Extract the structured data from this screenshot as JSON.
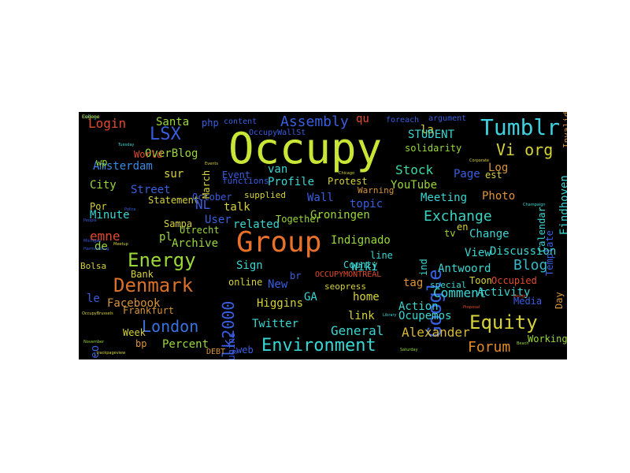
{
  "background": "#000000",
  "words": [
    {
      "t": "Occupy",
      "c": "#c8e635"
    },
    {
      "t": "Group",
      "c": "#e8722c"
    },
    {
      "t": "Tumblr",
      "c": "#3fd0e0"
    },
    {
      "t": "Energy",
      "c": "#9ad83a"
    },
    {
      "t": "Denmark",
      "c": "#d9712a"
    },
    {
      "t": "Environment",
      "c": "#3ad6d2"
    },
    {
      "t": "Equity",
      "c": "#d6d23a"
    },
    {
      "t": "Google",
      "c": "#3a5ee0"
    },
    {
      "t": "Talk2000",
      "c": "#3a5ee0"
    },
    {
      "t": "London",
      "c": "#3a72e0"
    },
    {
      "t": "LSX",
      "c": "#3a5ee0"
    },
    {
      "t": "Assembly",
      "c": "#3a5ee0"
    },
    {
      "t": "Exchange",
      "c": "#3ad2c2"
    },
    {
      "t": "Forum",
      "c": "#e08a2a"
    },
    {
      "t": "Blog",
      "c": "#38b8c8"
    },
    {
      "t": "Comment",
      "c": "#3ad6d2"
    },
    {
      "t": "General",
      "c": "#3ad6d2"
    },
    {
      "t": "Alexander",
      "c": "#d6b83a"
    },
    {
      "t": "Vi org",
      "c": "#d6d23a"
    },
    {
      "t": "Stock",
      "c": "#3ad6a6"
    },
    {
      "t": "Login",
      "c": "#e04a30"
    },
    {
      "t": "Facebook",
      "c": "#d6943a"
    },
    {
      "t": "Activity",
      "c": "#3ad6d2"
    },
    {
      "t": "Change",
      "c": "#3ad6d2"
    },
    {
      "t": "Profile",
      "c": "#3ad6d2"
    },
    {
      "t": "Meeting",
      "c": "#3ad6d2"
    },
    {
      "t": "Photo",
      "c": "#e0943a"
    },
    {
      "t": "Higgins",
      "c": "#d6d23a"
    },
    {
      "t": "Twitter",
      "c": "#3ad6d2"
    },
    {
      "t": "Percent",
      "c": "#9ad83a"
    },
    {
      "t": "OverBlog",
      "c": "#9ad83a"
    },
    {
      "t": "Amsterdam",
      "c": "#3a8ae0"
    },
    {
      "t": "Street",
      "c": "#3a5ee0"
    },
    {
      "t": "Minute",
      "c": "#3ad6d2"
    },
    {
      "t": "Statement",
      "c": "#d6d23a"
    },
    {
      "t": "emne",
      "c": "#e04a30"
    },
    {
      "t": "Archive",
      "c": "#9ad83a"
    },
    {
      "t": "Groningen",
      "c": "#9ad83a"
    },
    {
      "t": "related",
      "c": "#3ad6d2"
    },
    {
      "t": "Eindhoven",
      "c": "#3ad6d2"
    },
    {
      "t": "Wiki",
      "c": "#3ad6d2"
    },
    {
      "t": "New",
      "c": "#3a5ee0"
    },
    {
      "t": "Sign",
      "c": "#3ad6d2"
    },
    {
      "t": "Wall",
      "c": "#3a5ee0"
    },
    {
      "t": "Event",
      "c": "#3a5ee0"
    },
    {
      "t": "Santa",
      "c": "#9ad83a"
    },
    {
      "t": "php",
      "c": "#3a5ee0"
    },
    {
      "t": "content",
      "c": "#3a5ee0"
    },
    {
      "t": "OccupyWallSt",
      "c": "#3a5ee0"
    },
    {
      "t": "qu",
      "c": "#e04a30"
    },
    {
      "t": "argument",
      "c": "#3a5ee0"
    },
    {
      "t": "la",
      "c": "#d6d23a"
    },
    {
      "t": "STUDENT",
      "c": "#3ad6d2"
    },
    {
      "t": "solidarity",
      "c": "#9ad83a"
    },
    {
      "t": "foreach",
      "c": "#3a5ee0"
    },
    {
      "t": "Page",
      "c": "#3a5ee0"
    },
    {
      "t": "Log",
      "c": "#d6943a"
    },
    {
      "t": "est",
      "c": "#d6d23a"
    },
    {
      "t": "YouTube",
      "c": "#9ad83a"
    },
    {
      "t": "Protest",
      "c": "#d6d23a"
    },
    {
      "t": "van",
      "c": "#3ad6d2"
    },
    {
      "t": "Warning",
      "c": "#d6943a"
    },
    {
      "t": "Calendar",
      "c": "#3ad6d2"
    },
    {
      "t": "Template",
      "c": "#3a5ee0"
    },
    {
      "t": "Invalid",
      "c": "#d6943a"
    },
    {
      "t": "Day",
      "c": "#d6943a"
    },
    {
      "t": "topic",
      "c": "#3a5ee0"
    },
    {
      "t": "Together",
      "c": "#9ad83a"
    },
    {
      "t": "talk",
      "c": "#d6d23a"
    },
    {
      "t": "NL",
      "c": "#3a5ee0"
    },
    {
      "t": "User",
      "c": "#3a5ee0"
    },
    {
      "t": "Sampa",
      "c": "#d6d23a"
    },
    {
      "t": "Utrecht",
      "c": "#9ad83a"
    },
    {
      "t": "de",
      "c": "#9ad83a"
    },
    {
      "t": "pl",
      "c": "#9ad83a"
    },
    {
      "t": "Bank",
      "c": "#d6d23a"
    },
    {
      "t": "Bolsa",
      "c": "#d6d23a"
    },
    {
      "t": "le",
      "c": "#3a5ee0"
    },
    {
      "t": "Video",
      "c": "#3a5ee0"
    },
    {
      "t": "Frankfurt",
      "c": "#d6943a"
    },
    {
      "t": "Week",
      "c": "#d6d23a"
    },
    {
      "t": "bp",
      "c": "#e0943a"
    },
    {
      "t": "plugins",
      "c": "#3a5ee0"
    },
    {
      "t": "web",
      "c": "#3a5ee0"
    },
    {
      "t": "DEBT",
      "c": "#d6943a"
    },
    {
      "t": "br",
      "c": "#3a5ee0"
    },
    {
      "t": "GA",
      "c": "#3ad6d2"
    },
    {
      "t": "online",
      "c": "#d6d23a"
    },
    {
      "t": "OCCUPYMONTREAL",
      "c": "#e04a30"
    },
    {
      "t": "seopress",
      "c": "#d6d23a"
    },
    {
      "t": "home",
      "c": "#d6d23a"
    },
    {
      "t": "link",
      "c": "#d6d23a"
    },
    {
      "t": "tag",
      "c": "#e0943a"
    },
    {
      "t": "Action",
      "c": "#3ad6d2"
    },
    {
      "t": "Ocupemos",
      "c": "#3ad6d2"
    },
    {
      "t": "Working",
      "c": "#9ad83a"
    },
    {
      "t": "Media",
      "c": "#3a5ee0"
    },
    {
      "t": "Occupied",
      "c": "#e04a30"
    },
    {
      "t": "Toon",
      "c": "#d6d23a"
    },
    {
      "t": "Antwoord",
      "c": "#3ad6d2"
    },
    {
      "t": "special",
      "c": "#3ad6d2"
    },
    {
      "t": "Discussion",
      "c": "#3ad6d2"
    },
    {
      "t": "View",
      "c": "#3ad6d2"
    },
    {
      "t": "tv",
      "c": "#9ad83a"
    },
    {
      "t": "en",
      "c": "#d6d23a"
    },
    {
      "t": "Indignado",
      "c": "#9ad83a"
    },
    {
      "t": "line",
      "c": "#3ad6d2"
    },
    {
      "t": "County",
      "c": "#3ad6d2"
    },
    {
      "t": "World",
      "c": "#e04a30"
    },
    {
      "t": "sur",
      "c": "#d6d23a"
    },
    {
      "t": "City",
      "c": "#9ad83a"
    },
    {
      "t": "Por",
      "c": "#d6d23a"
    },
    {
      "t": "October",
      "c": "#3a5ee0"
    },
    {
      "t": "supplied",
      "c": "#d6d23a"
    },
    {
      "t": "functions",
      "c": "#3a5ee0"
    },
    {
      "t": "March",
      "c": "#d6d23a"
    },
    {
      "t": "wp",
      "c": "#9ad83a"
    },
    {
      "t": "ind",
      "c": "#3ad6d2"
    },
    {
      "t": "OccupyBrussels",
      "c": "#d6d23a"
    },
    {
      "t": "_trackpageview",
      "c": "#d6d23a"
    },
    {
      "t": "November",
      "c": "#9ad83a"
    },
    {
      "t": "Chicago",
      "c": "#d6d23a"
    },
    {
      "t": "People",
      "c": "#3a5ee0"
    },
    {
      "t": "Harrisonburg",
      "c": "#3a5ee0"
    },
    {
      "t": "Police",
      "c": "#3a5ee0"
    },
    {
      "t": "Corporate",
      "c": "#d6d23a"
    },
    {
      "t": "Champaign",
      "c": "#3ad6d2"
    },
    {
      "t": "Library",
      "c": "#3ad6d2"
    },
    {
      "t": "Saturday",
      "c": "#9ad83a"
    },
    {
      "t": "Meetup",
      "c": "#d6d23a"
    },
    {
      "t": "Michigan",
      "c": "#3a5ee0"
    },
    {
      "t": "Proposal",
      "c": "#e04a30"
    },
    {
      "t": "Tuesday",
      "c": "#3ad6d2"
    },
    {
      "t": "Events",
      "c": "#d6d23a"
    },
    {
      "t": "Beach",
      "c": "#9ad83a"
    },
    {
      "t": "Design",
      "c": "#e04a30"
    },
    {
      "t": "College",
      "c": "#3ad6d2"
    },
    {
      "t": "Eugene",
      "c": "#d6d23a"
    }
  ]
}
